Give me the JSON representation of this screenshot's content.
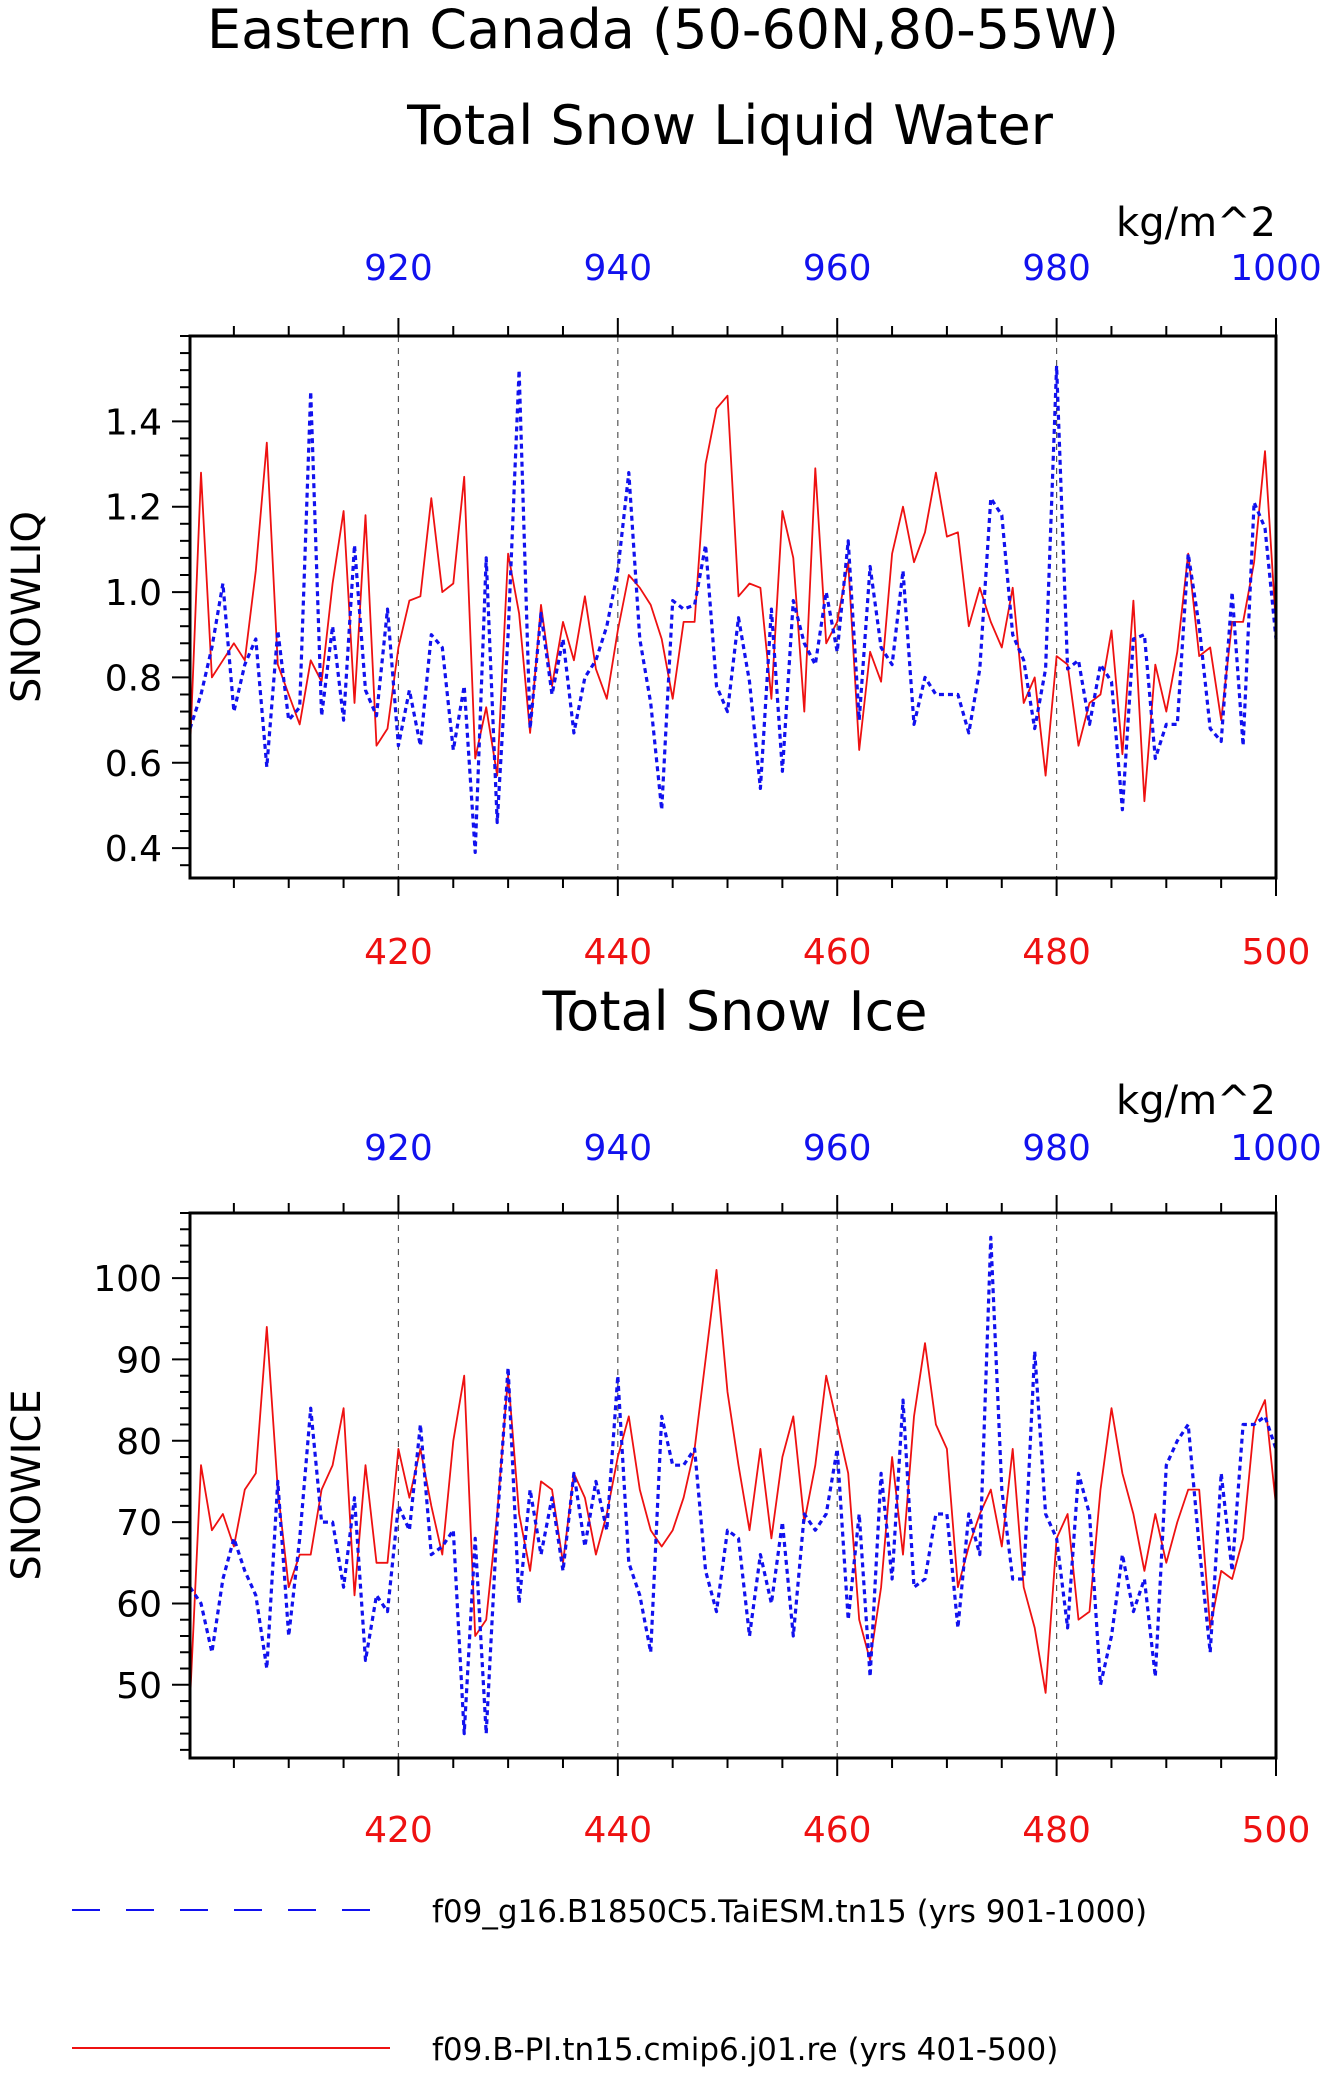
{
  "title_lines": [
    "Eastern Canada (50-60N,80-55W)",
    "Total Snow Liquid Water"
  ],
  "colors": {
    "red": "#ee1111",
    "blue": "#1111ee",
    "axis": "#000000",
    "grid": "#555555"
  },
  "legend": {
    "items": [
      {
        "label": "f09_g16.B1850C5.TaiESM.tn15 (yrs 901-1000)",
        "color": "#1111ee",
        "style": "dashed"
      },
      {
        "label": "f09.B-PI.tn15.cmip6.j01.re (yrs 401-500)",
        "color": "#ee1111",
        "style": "solid"
      }
    ]
  },
  "chart_data": [
    {
      "type": "line",
      "title": "Total Snow Liquid Water",
      "ylabel": "SNOWLIQ",
      "units": "kg/m^2",
      "x_bottom": {
        "range": [
          401,
          500
        ],
        "ticks": [
          420,
          440,
          460,
          480,
          500
        ]
      },
      "x_top": {
        "range": [
          901,
          1000
        ],
        "ticks": [
          920,
          940,
          960,
          980,
          1000
        ]
      },
      "ylim": [
        0.33,
        1.6
      ],
      "yticks": [
        0.4,
        0.6,
        0.8,
        1.0,
        1.2,
        1.4
      ],
      "ytick_labels": [
        "0.4",
        "0.6",
        "0.8",
        "1.0",
        "1.2",
        "1.4"
      ],
      "series": [
        {
          "name": "f09.B-PI.tn15.cmip6.j01.re (yrs 401-500)",
          "axis": "bottom",
          "color": "#ee1111",
          "dash": false,
          "x_start": 401,
          "values": [
            0.63,
            1.28,
            0.8,
            0.84,
            0.88,
            0.84,
            1.05,
            1.35,
            0.83,
            0.76,
            0.69,
            0.84,
            0.79,
            1.02,
            1.19,
            0.74,
            1.18,
            0.64,
            0.68,
            0.87,
            0.98,
            0.99,
            1.22,
            1.0,
            1.02,
            1.27,
            0.61,
            0.73,
            0.57,
            1.09,
            0.95,
            0.67,
            0.97,
            0.78,
            0.93,
            0.84,
            0.99,
            0.82,
            0.75,
            0.91,
            1.04,
            1.01,
            0.97,
            0.89,
            0.75,
            0.93,
            0.93,
            1.3,
            1.43,
            1.46,
            0.99,
            1.02,
            1.01,
            0.75,
            1.19,
            1.08,
            0.72,
            1.29,
            0.88,
            0.93,
            1.07,
            0.63,
            0.86,
            0.79,
            1.09,
            1.2,
            1.07,
            1.14,
            1.28,
            1.13,
            1.14,
            0.92,
            1.01,
            0.93,
            0.87,
            1.01,
            0.74,
            0.8,
            0.57,
            0.85,
            0.83,
            0.64,
            0.74,
            0.76,
            0.91,
            0.62,
            0.98,
            0.51,
            0.83,
            0.72,
            0.86,
            1.09,
            0.85,
            0.87,
            0.7,
            0.93,
            0.93,
            1.07,
            1.33,
            0.92
          ]
        },
        {
          "name": "f09_g16.B1850C5.TaiESM.tn15 (yrs 901-1000)",
          "axis": "top",
          "color": "#1111ee",
          "dash": true,
          "x_start": 901,
          "values": [
            0.68,
            0.76,
            0.87,
            1.02,
            0.72,
            0.83,
            0.89,
            0.59,
            0.91,
            0.7,
            0.73,
            1.47,
            0.71,
            0.92,
            0.7,
            1.11,
            0.77,
            0.71,
            0.96,
            0.64,
            0.77,
            0.64,
            0.9,
            0.87,
            0.63,
            0.78,
            0.39,
            1.08,
            0.46,
            0.9,
            1.52,
            0.68,
            0.95,
            0.76,
            0.89,
            0.67,
            0.8,
            0.84,
            0.92,
            1.05,
            1.28,
            0.89,
            0.74,
            0.49,
            0.98,
            0.96,
            0.97,
            1.11,
            0.78,
            0.72,
            0.94,
            0.79,
            0.54,
            0.96,
            0.58,
            0.98,
            0.88,
            0.83,
            1.0,
            0.86,
            1.12,
            0.7,
            1.06,
            0.87,
            0.83,
            1.05,
            0.69,
            0.8,
            0.76,
            0.76,
            0.76,
            0.67,
            0.82,
            1.22,
            1.18,
            0.9,
            0.84,
            0.68,
            0.82,
            1.53,
            0.82,
            0.84,
            0.69,
            0.83,
            0.79,
            0.49,
            0.89,
            0.9,
            0.61,
            0.69,
            0.69,
            1.09,
            0.92,
            0.68,
            0.65,
            1.0,
            0.64,
            1.21,
            1.15,
            0.89
          ]
        }
      ]
    },
    {
      "type": "line",
      "title": "Total Snow Ice",
      "ylabel": "SNOWICE",
      "units": "kg/m^2",
      "x_bottom": {
        "range": [
          401,
          500
        ],
        "ticks": [
          420,
          440,
          460,
          480,
          500
        ]
      },
      "x_top": {
        "range": [
          901,
          1000
        ],
        "ticks": [
          920,
          940,
          960,
          980,
          1000
        ]
      },
      "ylim": [
        41,
        108
      ],
      "yticks": [
        50,
        60,
        70,
        80,
        90,
        100
      ],
      "ytick_labels": [
        "50",
        "60",
        "70",
        "80",
        "90",
        "100"
      ],
      "series": [
        {
          "name": "f09.B-PI.tn15.cmip6.j01.re (yrs 401-500)",
          "axis": "bottom",
          "color": "#ee1111",
          "dash": false,
          "x_start": 401,
          "values": [
            48,
            77,
            69,
            71,
            67,
            74,
            76,
            94,
            74,
            62,
            66,
            66,
            74,
            77,
            84,
            61,
            77,
            65,
            65,
            79,
            73,
            79,
            72,
            66,
            80,
            88,
            56,
            58,
            71,
            88,
            71,
            64,
            75,
            74,
            65,
            76,
            73,
            66,
            71,
            78,
            83,
            74,
            69,
            67,
            69,
            73,
            79,
            90,
            101,
            86,
            77,
            69,
            79,
            68,
            78,
            83,
            70,
            77,
            88,
            82,
            76,
            58,
            53,
            62,
            78,
            66,
            83,
            92,
            82,
            79,
            62,
            67,
            71,
            74,
            67,
            79,
            62,
            57,
            49,
            68,
            71,
            58,
            59,
            74,
            84,
            76,
            71,
            64,
            71,
            65,
            70,
            74,
            74,
            57,
            64,
            63,
            68,
            82,
            85,
            72
          ]
        },
        {
          "name": "f09_g16.B1850C5.TaiESM.tn15 (yrs 901-1000)",
          "axis": "top",
          "color": "#1111ee",
          "dash": true,
          "x_start": 901,
          "values": [
            62,
            60,
            54,
            63,
            68,
            64,
            61,
            52,
            75,
            56,
            68,
            84,
            70,
            70,
            62,
            73,
            53,
            61,
            59,
            72,
            69,
            82,
            66,
            67,
            69,
            44,
            68,
            44,
            70,
            89,
            60,
            74,
            66,
            73,
            64,
            76,
            67,
            75,
            69,
            88,
            65,
            61,
            54,
            83,
            77,
            77,
            79,
            64,
            59,
            69,
            68,
            56,
            66,
            60,
            70,
            56,
            71,
            69,
            71,
            79,
            58,
            71,
            51,
            76,
            63,
            85,
            62,
            63,
            71,
            71,
            57,
            71,
            66,
            105,
            74,
            63,
            63,
            91,
            71,
            68,
            57,
            76,
            71,
            50,
            56,
            66,
            59,
            63,
            51,
            77,
            80,
            82,
            67,
            54,
            76,
            64,
            82,
            82,
            83,
            79
          ]
        }
      ]
    }
  ]
}
